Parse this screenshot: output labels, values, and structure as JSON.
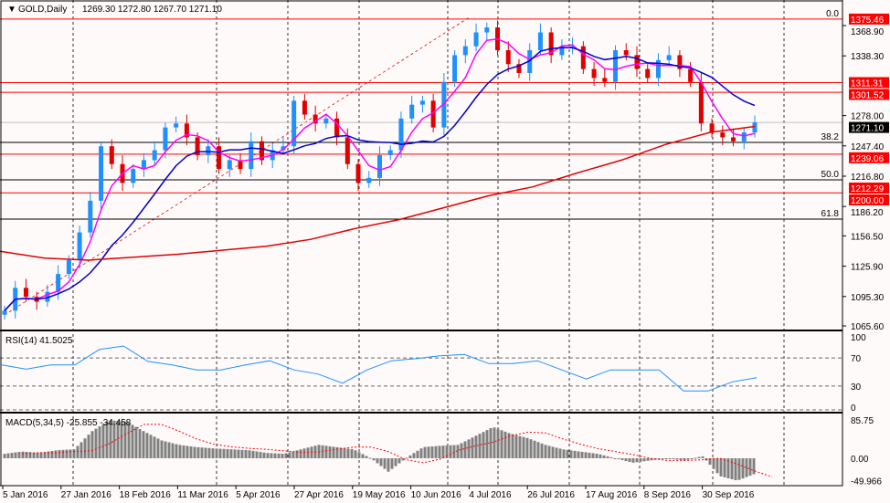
{
  "header": {
    "symbol": "GOLD,Daily",
    "ohlc": "1269.30 1272.80 1267.70 1271.10"
  },
  "colors": {
    "up": "#1e90ff",
    "down": "#e00000",
    "ma_fast": "#ff00ff",
    "ma_mid": "#0000cc",
    "ma_slow": "#e00000",
    "level": "#ff0000",
    "rsi": "#1e90ff",
    "macd": "#808080",
    "signal": "#ff0000"
  },
  "chart_data": {
    "type": "candlestick",
    "price_axis": {
      "ticks": [
        "1368.90",
        "1338.30",
        "1278.00",
        "1247.40",
        "1216.80",
        "1186.20",
        "1156.50",
        "1125.90",
        "1095.30",
        "1065.60"
      ],
      "range": [
        1065.6,
        1368.9
      ]
    },
    "x_labels": [
      "5 Jan 2016",
      "27 Jan 2016",
      "18 Feb 2016",
      "11 Mar 2016",
      "5 Apr 2016",
      "27 Apr 2016",
      "19 May 2016",
      "10 Jun 2016",
      "4 Jul 2016",
      "26 Jul 2016",
      "17 Aug 2016",
      "8 Sep 2016",
      "30 Sep 2016"
    ],
    "closes": [
      1081,
      1104,
      1095,
      1090,
      1100,
      1118,
      1132,
      1160,
      1192,
      1247,
      1229,
      1210,
      1224,
      1233,
      1243,
      1266,
      1270,
      1256,
      1238,
      1247,
      1224,
      1233,
      1224,
      1252,
      1233,
      1243,
      1247,
      1293,
      1279,
      1270,
      1275,
      1256,
      1229,
      1210,
      1215,
      1238,
      1243,
      1275,
      1289,
      1293,
      1266,
      1312,
      1339,
      1348,
      1362,
      1367,
      1344,
      1330,
      1321,
      1344,
      1362,
      1339,
      1348,
      1348,
      1325,
      1316,
      1312,
      1344,
      1339,
      1325,
      1316,
      1334,
      1339,
      1325,
      1312,
      1270,
      1261,
      1256,
      1252,
      1261,
      1271
    ],
    "ma_slow": [
      1141,
      1134,
      1132,
      1135,
      1138,
      1142,
      1146,
      1153,
      1164,
      1173,
      1185,
      1197,
      1206,
      1220,
      1233,
      1249,
      1261,
      1267
    ],
    "levels": [
      {
        "label": "1375.46",
        "value": 1375.46
      },
      {
        "label": "1311.31",
        "value": 1311.31
      },
      {
        "label": "1301.52",
        "value": 1301.52
      },
      {
        "label": "1239.06",
        "value": 1239.06
      },
      {
        "label": "1212.29",
        "value": 1212.29
      },
      {
        "label": "1200.00",
        "value": 1200.0
      }
    ],
    "current_price": {
      "label": "1271.10",
      "value": 1271.1
    },
    "fibonacci": [
      {
        "label": "0.0",
        "value": 1375.46
      },
      {
        "label": "38.2",
        "value": 1260.0
      },
      {
        "label": "50.0",
        "value": 1222.0
      },
      {
        "label": "61.8",
        "value": 1182.5
      }
    ],
    "rsi": {
      "title": "RSI(14) 41.5025",
      "ticks": [
        "100",
        "70",
        "30",
        "0"
      ],
      "levels": [
        70,
        30
      ],
      "values": [
        60,
        54,
        60,
        60,
        82,
        87,
        65,
        60,
        53,
        53,
        60,
        66,
        53,
        47,
        34,
        53,
        66,
        69,
        73,
        75,
        62,
        62,
        66,
        53,
        40,
        53,
        53,
        53,
        23,
        23,
        36,
        42
      ]
    },
    "macd": {
      "title": "MACD(5,34,5) -25.855 -34.458",
      "ticks": [
        "85.75",
        "0.00",
        "-49.966"
      ],
      "values": [
        10,
        15,
        12,
        18,
        20,
        60,
        85,
        82,
        60,
        40,
        30,
        25,
        22,
        20,
        18,
        12,
        10,
        20,
        30,
        25,
        20,
        0,
        -30,
        0,
        25,
        28,
        30,
        50,
        70,
        55,
        45,
        30,
        20,
        15,
        10,
        0,
        -10,
        -5,
        0,
        -5,
        5,
        -40,
        -50,
        -35
      ]
    }
  }
}
